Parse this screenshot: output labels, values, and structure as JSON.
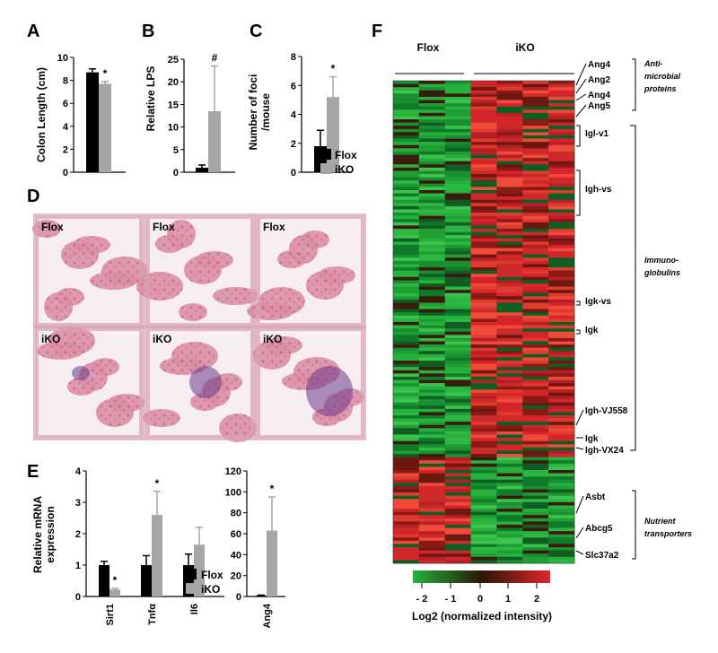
{
  "colors": {
    "flox": "#000000",
    "iko": "#a6a6a6",
    "green": "#22b33a",
    "red": "#e0262b",
    "dark": "#5a2010"
  },
  "panels": {
    "A": {
      "letter": "A",
      "ylabel": "Colon Length (cm)",
      "sig": "*"
    },
    "B": {
      "letter": "B",
      "ylabel": "Relative LPS",
      "sig": "#"
    },
    "C": {
      "letter": "C",
      "ylabel_line1": "Number of foci",
      "ylabel_line2": "/mouse",
      "sig": "*"
    },
    "D": {
      "letter": "D"
    },
    "E": {
      "letter": "E",
      "ylabel_line1": "Relative mRNA",
      "ylabel_line2": "expression"
    },
    "F": {
      "letter": "F"
    }
  },
  "legend": {
    "flox": "Flox",
    "iko": "iKO"
  },
  "histology": {
    "labels": [
      "Flox",
      "Flox",
      "Flox",
      "iKO",
      "iKO",
      "iKO"
    ]
  },
  "heatmap": {
    "group_labels": [
      "Flox",
      "iKO"
    ],
    "colorbar_ticks": [
      "- 2",
      "- 1",
      "0",
      "1",
      "2"
    ],
    "colorbar_title": "Log2 (normalized intensity)",
    "genes": [
      "Ang4",
      "Ang2",
      "Ang4",
      "Ang5",
      "Igl-v1",
      "Igh-vs",
      "Igk-vs",
      "Igk",
      "Igh-VJ558",
      "Igk",
      "Igh-VX24",
      "Asbt",
      "Abcg5",
      "Slc37a2"
    ],
    "categories": {
      "anti1": "Anti-",
      "anti2": "microbial",
      "anti3": "proteins",
      "immuno1": "Immuno-",
      "immuno2": "globulins",
      "nutr1": "Nutrient",
      "nutr2": "transporters"
    }
  },
  "chart_data": [
    {
      "type": "bar",
      "panel": "A",
      "categories": [
        "Flox",
        "iKO"
      ],
      "values": [
        8.7,
        7.7
      ],
      "errors": [
        0.3,
        0.2
      ],
      "ylabel": "Colon Length (cm)",
      "ylim": [
        0,
        10
      ],
      "yticks": [
        0,
        2,
        4,
        6,
        8,
        10
      ]
    },
    {
      "type": "bar",
      "panel": "B",
      "categories": [
        "Flox",
        "iKO"
      ],
      "values": [
        1.0,
        13.5
      ],
      "errors": [
        0.6,
        10.0
      ],
      "ylabel": "Relative LPS",
      "ylim": [
        0,
        25
      ],
      "yticks": [
        0,
        5,
        10,
        15,
        20,
        25
      ]
    },
    {
      "type": "bar",
      "panel": "C",
      "categories": [
        "Flox",
        "iKO"
      ],
      "values": [
        1.8,
        5.2
      ],
      "errors": [
        1.1,
        1.4
      ],
      "ylabel": "Number of foci /mouse",
      "ylim": [
        0,
        8
      ],
      "yticks": [
        0,
        2,
        4,
        6,
        8
      ]
    },
    {
      "type": "bar",
      "panel": "E1",
      "categories": [
        "Sirt1",
        "Tnfα",
        "Il6"
      ],
      "series": [
        {
          "name": "Flox",
          "values": [
            1.0,
            1.0,
            1.0
          ],
          "errors": [
            0.12,
            0.3,
            0.35
          ]
        },
        {
          "name": "iKO",
          "values": [
            0.22,
            2.6,
            1.65
          ],
          "errors": [
            0.04,
            0.75,
            0.55
          ]
        }
      ],
      "ylim": [
        0,
        4
      ],
      "yticks": [
        0,
        1,
        2,
        3,
        4
      ]
    },
    {
      "type": "bar",
      "panel": "E2",
      "categories": [
        "Ang4"
      ],
      "series": [
        {
          "name": "Flox",
          "values": [
            1.0
          ],
          "errors": [
            0.3
          ]
        },
        {
          "name": "iKO",
          "values": [
            63
          ],
          "errors": [
            32
          ]
        }
      ],
      "ylim": [
        0,
        120
      ],
      "yticks": [
        0,
        20,
        40,
        60,
        80,
        100,
        120
      ]
    }
  ]
}
